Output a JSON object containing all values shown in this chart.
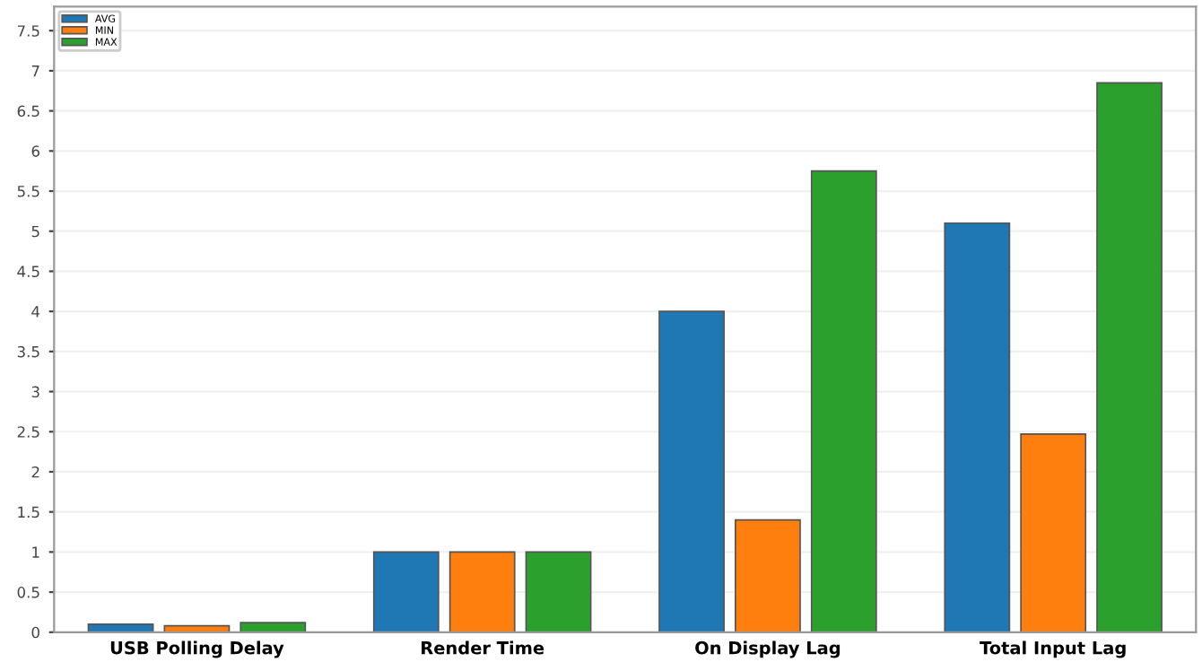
{
  "chart_data": {
    "type": "bar",
    "categories": [
      "USB Polling Delay",
      "Render Time",
      "On Display Lag",
      "Total Input Lag"
    ],
    "series": [
      {
        "name": "AVG",
        "color": "#1f77b4",
        "values": [
          0.1,
          1.0,
          4.0,
          5.1
        ]
      },
      {
        "name": "MIN",
        "color": "#ff7f0e",
        "values": [
          0.08,
          1.0,
          1.4,
          2.47
        ]
      },
      {
        "name": "MAX",
        "color": "#2ca02c",
        "values": [
          0.12,
          1.0,
          5.75,
          6.85
        ]
      }
    ],
    "ylim": [
      0,
      7.8
    ],
    "yticks": [
      0,
      0.5,
      1,
      1.5,
      2,
      2.5,
      3,
      3.5,
      4,
      4.5,
      5,
      5.5,
      6,
      6.5,
      7,
      7.5
    ],
    "grid": "y",
    "legend": "top left"
  }
}
